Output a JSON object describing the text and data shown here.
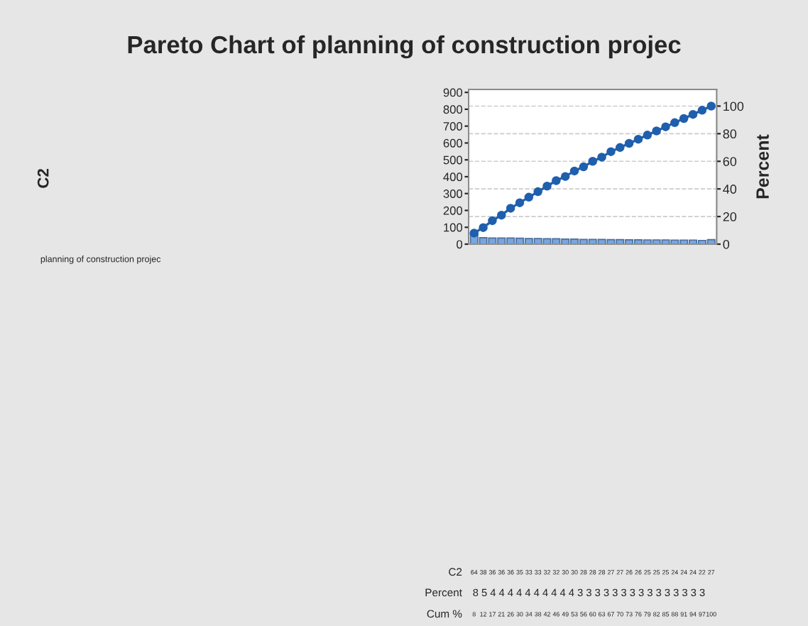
{
  "chart_data": {
    "type": "bar",
    "title": "Pareto Chart of planning of construction projec",
    "y2label": "Percent",
    "annotations": [
      "planning of construction projec",
      "C2",
      "C2",
      "Percent",
      "Cum %",
      "8 5 4 4 4 4 4 4 4 4 4 4 3 3 3 3 3 3 3 3 3 3 3 3 3 3 3"
    ],
    "categories": [
      null,
      null,
      null,
      null,
      null,
      null,
      null,
      null,
      null,
      null,
      null,
      null,
      null,
      null,
      null,
      null,
      null,
      null,
      null,
      null,
      null,
      null,
      null,
      null,
      null,
      null,
      null
    ],
    "series": [
      {
        "color": "#7aa6dc",
        "values": [
          64,
          38,
          36,
          36,
          36,
          35,
          33,
          33,
          32,
          32,
          30,
          30,
          28,
          28,
          28,
          27,
          27,
          26,
          26,
          25,
          25,
          25,
          24,
          24,
          24,
          22,
          27
        ]
      },
      {
        "type": "line",
        "axis": "y2",
        "color": "#1f5fad",
        "values": [
          8,
          12,
          17,
          21,
          26,
          30,
          34,
          38,
          42,
          46,
          49,
          53,
          56,
          60,
          63,
          67,
          70,
          73,
          76,
          79,
          82,
          85,
          88,
          91,
          94,
          97,
          100
        ]
      }
    ],
    "ylim": [
      0,
      917
    ],
    "yticks": [
      0,
      100,
      200,
      300,
      400,
      500,
      600,
      700,
      800,
      900
    ],
    "y2lim": [
      0,
      112
    ],
    "y2ticks": [
      0,
      20,
      40,
      60,
      80,
      100
    ],
    "grid": true,
    "marker": "circle",
    "line_style": "solid",
    "data_labels": true,
    "legend": false
  }
}
